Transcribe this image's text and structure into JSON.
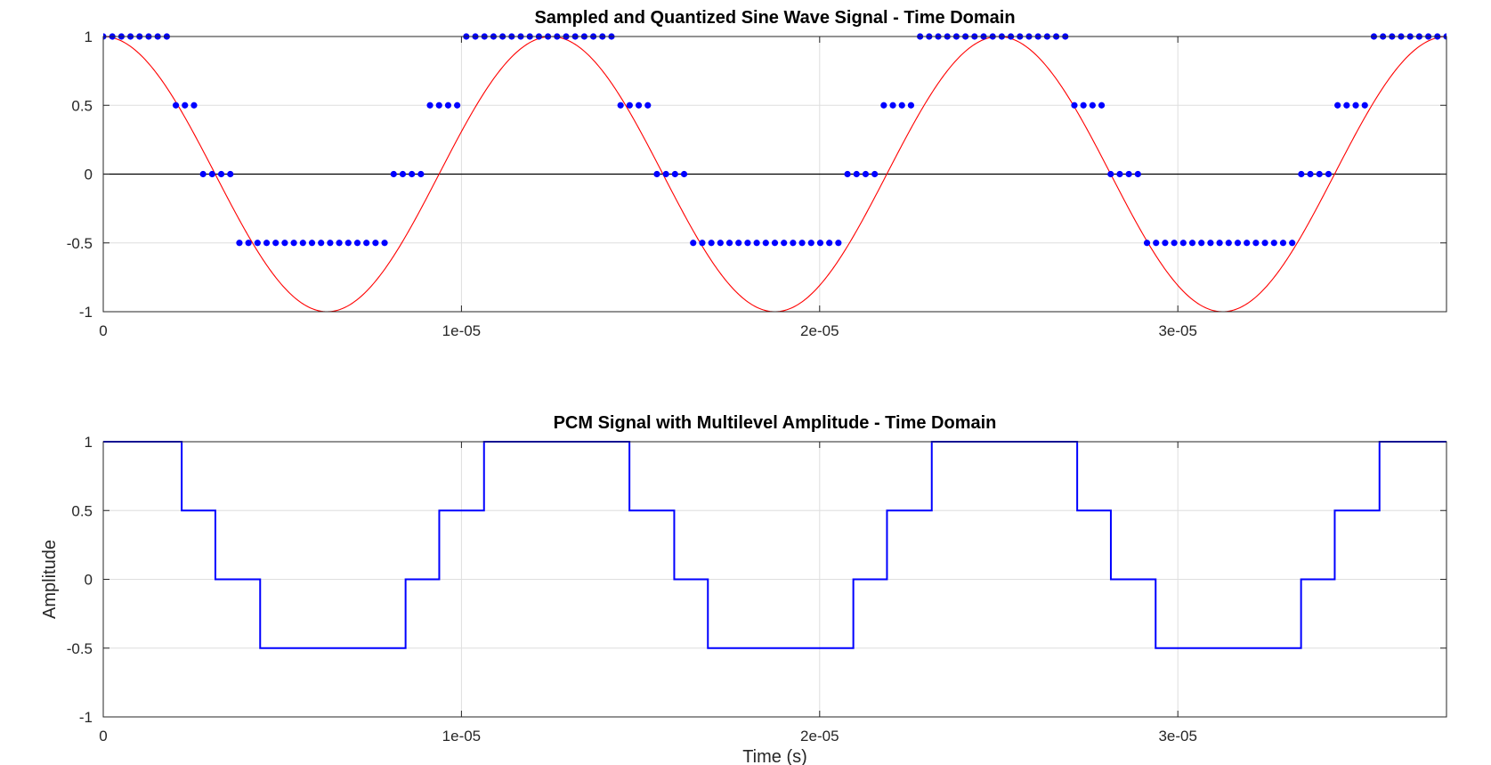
{
  "chart_data": [
    {
      "type": "line",
      "title": "Sampled and Quantized Sine Wave Signal - Time Domain",
      "xlabel": "",
      "ylabel": "",
      "xlim": [
        0,
        3.75e-05
      ],
      "ylim": [
        -1,
        1
      ],
      "xticks": [
        0,
        1e-05,
        2e-05,
        3e-05
      ],
      "xtick_labels": [
        "0",
        "1e-05",
        "2e-05",
        "3e-05"
      ],
      "yticks": [
        1,
        0.5,
        0,
        -0.5,
        -1
      ],
      "ytick_labels": [
        "1",
        "0.5",
        "0",
        "-0.5",
        "-1"
      ],
      "grid": true,
      "zero_line": true,
      "series": [
        {
          "kind": "line",
          "color": "#ff0000",
          "function": "cos",
          "amplitude": 1,
          "frequency_hz": 80000,
          "t_start": 0,
          "t_end": 3.75e-05
        },
        {
          "kind": "markers",
          "color": "#0000ff",
          "sample_period": 1e-06,
          "t_start": 0,
          "t_end": 3.75e-05,
          "levels": [
            1,
            1,
            1,
            1,
            1,
            1,
            1,
            1,
            0.5,
            0.5,
            0.5,
            0,
            0,
            0,
            0,
            -0.5,
            -0.5,
            -0.5,
            -0.5,
            -0.5,
            -0.5,
            -0.5,
            -0.5,
            -0.5,
            -0.5,
            -0.5,
            -0.5,
            -0.5,
            -0.5,
            -0.5,
            -0.5,
            -0.5,
            0,
            0,
            0,
            0,
            0.5,
            0.5,
            0.5,
            0.5,
            1,
            1,
            1,
            1,
            1,
            1,
            1,
            1,
            1,
            1,
            1,
            1,
            1,
            1,
            1,
            1,
            1,
            0.5,
            0.5,
            0.5,
            0.5,
            0,
            0,
            0,
            0,
            -0.5,
            -0.5,
            -0.5,
            -0.5,
            -0.5,
            -0.5,
            -0.5,
            -0.5,
            -0.5,
            -0.5,
            -0.5,
            -0.5,
            -0.5,
            -0.5,
            -0.5,
            -0.5,
            -0.5,
            0,
            0,
            0,
            0,
            0.5,
            0.5,
            0.5,
            0.5,
            1,
            1,
            1,
            1,
            1,
            1,
            1,
            1,
            1,
            1,
            1,
            1,
            1,
            1,
            1,
            1,
            1,
            0.5,
            0.5,
            0.5,
            0.5,
            0,
            0,
            0,
            0,
            -0.5,
            -0.5,
            -0.5,
            -0.5,
            -0.5,
            -0.5,
            -0.5,
            -0.5,
            -0.5,
            -0.5,
            -0.5,
            -0.5,
            -0.5,
            -0.5,
            -0.5,
            -0.5,
            -0.5,
            0,
            0,
            0,
            0,
            0.5,
            0.5,
            0.5,
            0.5,
            1,
            1,
            1,
            1,
            1,
            1,
            1,
            1,
            1
          ]
        }
      ]
    },
    {
      "type": "line",
      "title": "PCM Signal with Multilevel Amplitude - Time Domain",
      "xlabel": "Time (s)",
      "ylabel": "Amplitude",
      "xlim": [
        0,
        3.75e-05
      ],
      "ylim": [
        -1,
        1
      ],
      "xticks": [
        0,
        1e-05,
        2e-05,
        3e-05
      ],
      "xtick_labels": [
        "0",
        "1e-05",
        "2e-05",
        "3e-05"
      ],
      "yticks": [
        1,
        0.5,
        0,
        -0.5,
        -1
      ],
      "ytick_labels": [
        "1",
        "0.5",
        "0",
        "-0.5",
        "-1"
      ],
      "grid": true,
      "zero_line": false,
      "series": [
        {
          "kind": "step",
          "color": "#0000ff",
          "segments": [
            [
              0,
              2.19e-06,
              1
            ],
            [
              2.19e-06,
              3.13e-06,
              0.5
            ],
            [
              3.13e-06,
              4.38e-06,
              0
            ],
            [
              4.38e-06,
              8.44e-06,
              -0.5
            ],
            [
              8.44e-06,
              9.38e-06,
              0
            ],
            [
              9.38e-06,
              1.063e-05,
              0.5
            ],
            [
              1.063e-05,
              1.469e-05,
              1
            ],
            [
              1.469e-05,
              1.594e-05,
              0.5
            ],
            [
              1.594e-05,
              1.688e-05,
              0
            ],
            [
              1.688e-05,
              2.094e-05,
              -0.5
            ],
            [
              2.094e-05,
              2.188e-05,
              0
            ],
            [
              2.188e-05,
              2.313e-05,
              0.5
            ],
            [
              2.313e-05,
              2.719e-05,
              1
            ],
            [
              2.719e-05,
              2.813e-05,
              0.5
            ],
            [
              2.813e-05,
              2.938e-05,
              0
            ],
            [
              2.938e-05,
              3.344e-05,
              -0.5
            ],
            [
              3.344e-05,
              3.438e-05,
              0
            ],
            [
              3.438e-05,
              3.563e-05,
              0.5
            ],
            [
              3.563e-05,
              3.75e-05,
              1
            ]
          ]
        }
      ]
    }
  ]
}
